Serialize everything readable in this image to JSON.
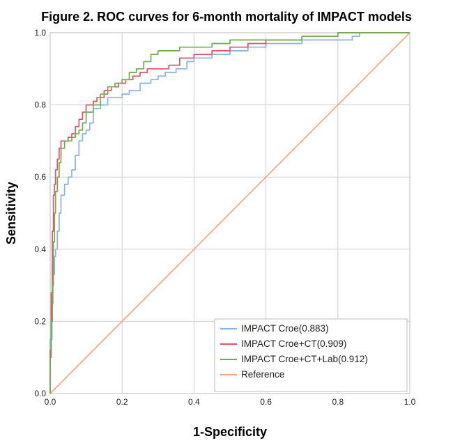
{
  "chart_data": {
    "type": "line",
    "title": "Figure 2. ROC curves for 6-month mortality of IMPACT models",
    "xlabel": "1-Specificity",
    "ylabel": "Sensitivity",
    "xlim": [
      0,
      1
    ],
    "ylim": [
      0,
      1
    ],
    "xticks": [
      "0.0",
      "0.2",
      "0.4",
      "0.6",
      "0.8",
      "1.0"
    ],
    "yticks": [
      "0.0",
      "0.2",
      "0.4",
      "0.6",
      "0.8",
      "1.0"
    ],
    "grid": true,
    "legend_position": "bottom-right",
    "series": [
      {
        "name": "IMPACT Croe(0.883)",
        "color": "#86b3e8",
        "x": [
          0,
          0.005,
          0.008,
          0.012,
          0.015,
          0.02,
          0.025,
          0.03,
          0.04,
          0.05,
          0.06,
          0.07,
          0.08,
          0.09,
          0.1,
          0.11,
          0.12,
          0.14,
          0.16,
          0.18,
          0.2,
          0.22,
          0.25,
          0.28,
          0.3,
          0.32,
          0.35,
          0.38,
          0.4,
          0.45,
          0.5,
          0.55,
          0.6,
          0.7,
          0.8,
          0.84,
          0.86,
          0.88,
          1.0
        ],
        "y": [
          0,
          0.15,
          0.25,
          0.33,
          0.38,
          0.4,
          0.45,
          0.5,
          0.55,
          0.58,
          0.6,
          0.62,
          0.66,
          0.7,
          0.72,
          0.73,
          0.75,
          0.79,
          0.8,
          0.82,
          0.82,
          0.83,
          0.84,
          0.86,
          0.87,
          0.88,
          0.89,
          0.9,
          0.92,
          0.93,
          0.94,
          0.95,
          0.96,
          0.97,
          0.98,
          0.98,
          0.99,
          1.0,
          1.0
        ]
      },
      {
        "name": "IMPACT Croe+CT(0.909)",
        "color": "#e8506a",
        "x": [
          0,
          0.003,
          0.006,
          0.009,
          0.012,
          0.015,
          0.02,
          0.025,
          0.03,
          0.04,
          0.05,
          0.06,
          0.07,
          0.08,
          0.09,
          0.1,
          0.11,
          0.12,
          0.13,
          0.15,
          0.17,
          0.19,
          0.21,
          0.23,
          0.25,
          0.27,
          0.3,
          0.33,
          0.36,
          0.4,
          0.45,
          0.5,
          0.55,
          0.6,
          0.7,
          0.8,
          0.85,
          1.0
        ],
        "y": [
          0,
          0.12,
          0.28,
          0.45,
          0.55,
          0.58,
          0.62,
          0.65,
          0.68,
          0.7,
          0.7,
          0.71,
          0.72,
          0.74,
          0.76,
          0.78,
          0.8,
          0.8,
          0.81,
          0.82,
          0.84,
          0.85,
          0.86,
          0.87,
          0.88,
          0.89,
          0.9,
          0.9,
          0.91,
          0.93,
          0.94,
          0.95,
          0.96,
          0.97,
          0.98,
          0.99,
          1.0,
          1.0
        ]
      },
      {
        "name": "IMPACT Croe+CT+Lab(0.912)",
        "color": "#6ab04c",
        "x": [
          0,
          0.003,
          0.006,
          0.009,
          0.012,
          0.015,
          0.02,
          0.025,
          0.03,
          0.04,
          0.05,
          0.06,
          0.07,
          0.08,
          0.09,
          0.1,
          0.12,
          0.14,
          0.16,
          0.18,
          0.2,
          0.22,
          0.24,
          0.26,
          0.28,
          0.3,
          0.32,
          0.34,
          0.36,
          0.4,
          0.45,
          0.5,
          0.6,
          0.7,
          0.8,
          0.85,
          1.0
        ],
        "y": [
          0,
          0.1,
          0.2,
          0.3,
          0.42,
          0.5,
          0.56,
          0.6,
          0.64,
          0.68,
          0.7,
          0.7,
          0.71,
          0.72,
          0.73,
          0.75,
          0.78,
          0.8,
          0.83,
          0.85,
          0.86,
          0.87,
          0.89,
          0.9,
          0.92,
          0.94,
          0.95,
          0.95,
          0.95,
          0.96,
          0.96,
          0.97,
          0.98,
          0.98,
          0.99,
          1.0,
          1.0
        ]
      },
      {
        "name": "Reference",
        "color": "#f4a582",
        "x": [
          0,
          1
        ],
        "y": [
          0,
          1
        ]
      }
    ]
  }
}
